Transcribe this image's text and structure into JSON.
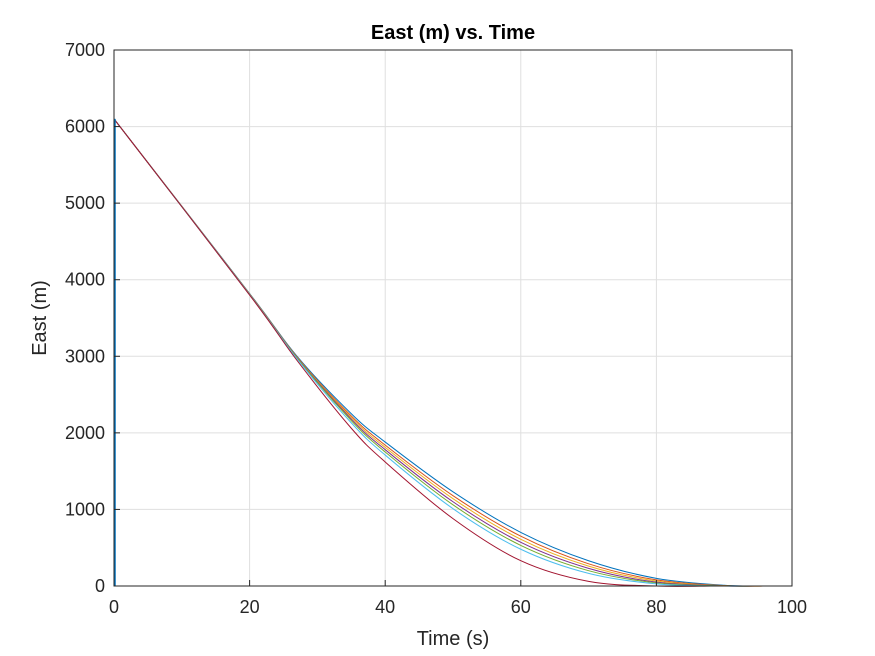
{
  "chart_data": {
    "type": "line",
    "title": "East (m) vs. Time",
    "xlabel": "Time (s)",
    "ylabel": "East (m)",
    "xlim": [
      0,
      100
    ],
    "ylim": [
      0,
      7000
    ],
    "xticks": [
      "0",
      "20",
      "40",
      "60",
      "80",
      "100"
    ],
    "yticks": [
      "0",
      "1000",
      "2000",
      "3000",
      "4000",
      "5000",
      "6000",
      "7000"
    ],
    "grid": true,
    "box": true,
    "series": [
      {
        "color": "#0072BD",
        "x": [
          0,
          20,
          27,
          35,
          40,
          50,
          60,
          70,
          80,
          90,
          97.5
        ],
        "y": [
          6100,
          3820,
          3000,
          2250,
          1880,
          1230,
          700,
          330,
          100,
          10,
          0
        ]
      },
      {
        "color": "#D95319",
        "x": [
          0,
          20,
          27,
          35,
          40,
          50,
          60,
          70,
          80,
          90,
          96.5
        ],
        "y": [
          6100,
          3815,
          2990,
          2220,
          1840,
          1180,
          650,
          290,
          80,
          5,
          0
        ]
      },
      {
        "color": "#EDB120",
        "x": [
          0,
          20,
          27,
          35,
          40,
          50,
          60,
          70,
          80,
          90,
          96
        ],
        "y": [
          6100,
          3812,
          2985,
          2200,
          1810,
          1140,
          610,
          260,
          65,
          3,
          0
        ]
      },
      {
        "color": "#7E2F8E",
        "x": [
          0,
          20,
          27,
          35,
          40,
          50,
          60,
          70,
          80,
          90,
          95.5
        ],
        "y": [
          6100,
          3810,
          2980,
          2180,
          1780,
          1100,
          570,
          230,
          50,
          2,
          0
        ]
      },
      {
        "color": "#77AC30",
        "x": [
          0,
          20,
          27,
          35,
          40,
          50,
          60,
          70,
          80,
          90,
          95
        ],
        "y": [
          6100,
          3808,
          2975,
          2160,
          1750,
          1060,
          530,
          200,
          40,
          1,
          0
        ]
      },
      {
        "color": "#4DBEEE",
        "x": [
          0,
          20,
          27,
          35,
          40,
          50,
          60,
          70,
          80,
          90,
          94.5
        ],
        "y": [
          6100,
          3805,
          2965,
          2130,
          1710,
          1010,
          480,
          165,
          28,
          0,
          0
        ]
      },
      {
        "color": "#A2142F",
        "x": [
          0,
          20,
          27,
          35,
          40,
          50,
          60,
          70,
          80,
          88
        ],
        "y": [
          6100,
          3800,
          2945,
          2060,
          1620,
          880,
          330,
          60,
          0,
          0
        ]
      }
    ]
  }
}
